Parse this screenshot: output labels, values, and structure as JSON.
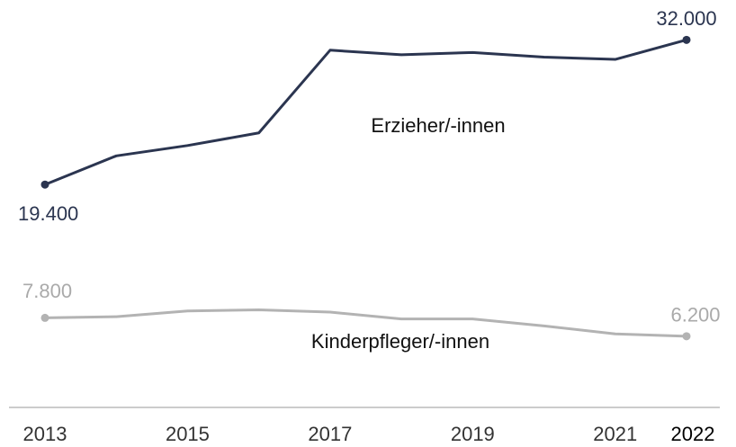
{
  "chart_data": {
    "type": "line",
    "x": [
      2013,
      2014,
      2015,
      2016,
      2017,
      2018,
      2019,
      2020,
      2021,
      2022
    ],
    "xlim": [
      2013,
      2022
    ],
    "xticks": [
      2013,
      2015,
      2017,
      2019,
      2021,
      2022
    ],
    "highlighted_tick": 2022,
    "ylim": [
      0,
      35000
    ],
    "series": [
      {
        "name": "Erzieher/-innen",
        "color": "#2b3550",
        "values": [
          19400,
          21900,
          22800,
          23900,
          31100,
          30700,
          30900,
          30500,
          30300,
          32000
        ],
        "value_labels": [
          "19.400",
          null,
          null,
          null,
          null,
          null,
          null,
          null,
          null,
          "32.000"
        ]
      },
      {
        "name": "Kinderpfleger/-innen",
        "color": "#b3b3b3",
        "values": [
          7800,
          7900,
          8400,
          8500,
          8300,
          7700,
          7700,
          7100,
          6400,
          6200
        ],
        "value_labels": [
          "7.800",
          null,
          null,
          null,
          null,
          null,
          null,
          null,
          null,
          "6.200"
        ]
      }
    ]
  }
}
